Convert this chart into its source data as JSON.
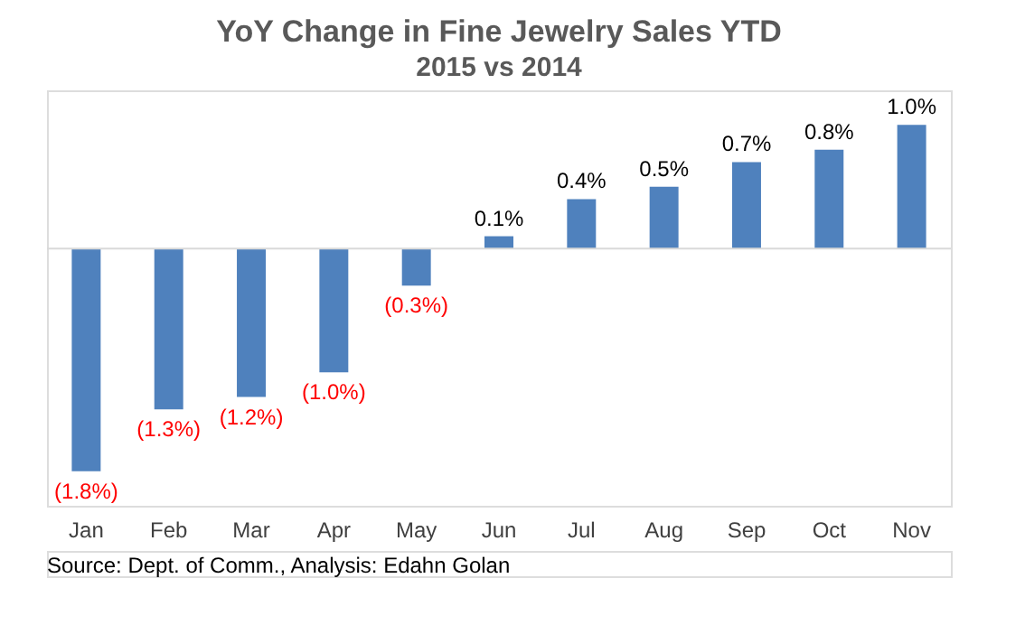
{
  "chart_data": {
    "type": "bar",
    "title": "YoY Change in Fine Jewelry Sales YTD",
    "subtitle": "2015 vs 2014",
    "categories": [
      "Jan",
      "Feb",
      "Mar",
      "Apr",
      "May",
      "Jun",
      "Jul",
      "Aug",
      "Sep",
      "Oct",
      "Nov"
    ],
    "values": [
      -1.8,
      -1.3,
      -1.2,
      -1.0,
      -0.3,
      0.1,
      0.4,
      0.5,
      0.7,
      0.8,
      1.0
    ],
    "value_labels": [
      "(1.8%)",
      "(1.3%)",
      "(1.2%)",
      "(1.0%)",
      "(0.3%)",
      "0.1%",
      "0.4%",
      "0.5%",
      "0.7%",
      "0.8%",
      "1.0%"
    ],
    "color": "#4f81bd",
    "annotations": [
      "Source: Dept. of Comm., Analysis: Edahn Golan"
    ]
  }
}
